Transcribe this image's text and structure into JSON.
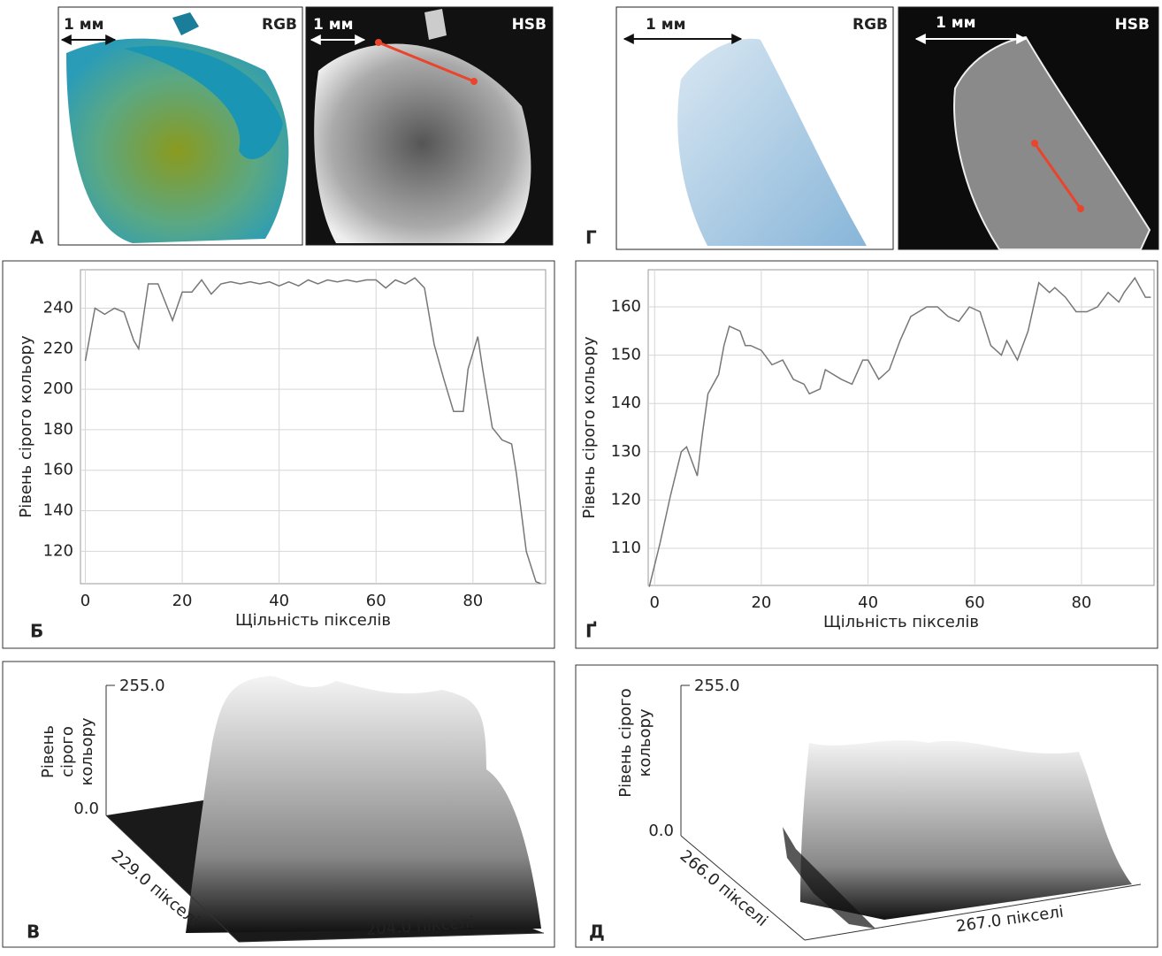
{
  "image_panels": [
    {
      "label": "А",
      "images": [
        {
          "scale": "1 мм",
          "mode": "RGB"
        },
        {
          "scale": "1 мм",
          "mode": "HSB"
        }
      ]
    },
    {
      "label": "Г",
      "images": [
        {
          "scale": "1 мм",
          "mode": "RGB"
        },
        {
          "scale": "1 мм",
          "mode": "HSB"
        }
      ]
    }
  ],
  "chart_data": [
    {
      "type": "line",
      "panel_label": "Б",
      "x_label": "Щільність пікселів",
      "y_label": "Рівень сірого кольору",
      "color": "#777777",
      "grid": true,
      "x": [
        0,
        2,
        4,
        6,
        8,
        10,
        11,
        13,
        15,
        17,
        18,
        20,
        22,
        24,
        26,
        28,
        30,
        32,
        34,
        36,
        38,
        40,
        42,
        44,
        46,
        48,
        50,
        52,
        54,
        56,
        58,
        60,
        62,
        64,
        66,
        68,
        70,
        72,
        74,
        76,
        78,
        79,
        81,
        82,
        84,
        86,
        88,
        89,
        91,
        93,
        94
      ],
      "values": [
        214,
        240,
        237,
        240,
        238,
        224,
        220,
        252,
        252,
        240,
        234,
        248,
        248,
        254,
        247,
        252,
        253,
        252,
        253,
        252,
        253,
        251,
        253,
        251,
        254,
        252,
        254,
        253,
        254,
        253,
        254,
        254,
        250,
        254,
        252,
        255,
        250,
        222,
        205,
        189,
        189,
        210,
        226,
        210,
        181,
        175,
        173,
        158,
        120,
        105,
        104
      ],
      "xlim": [
        -1,
        95
      ],
      "ylim": [
        104,
        259
      ],
      "xticks": [
        0,
        20,
        40,
        60,
        80
      ],
      "yticks": [
        120,
        140,
        160,
        180,
        200,
        220,
        240
      ]
    },
    {
      "type": "line",
      "panel_label": "Ґ",
      "x_label": "Щільність пікселів",
      "y_label": "Рівень сірого кольору",
      "color": "#777777",
      "grid": true,
      "x": [
        -1,
        1,
        3,
        5,
        6,
        8,
        9,
        10,
        12,
        13,
        14,
        16,
        17,
        18,
        20,
        22,
        24,
        26,
        28,
        29,
        31,
        32,
        35,
        37,
        39,
        40,
        42,
        44,
        46,
        48,
        51,
        53,
        55,
        57,
        59,
        61,
        63,
        65,
        66,
        68,
        70,
        72,
        74,
        75,
        77,
        79,
        81,
        83,
        85,
        87,
        88,
        90,
        92,
        93
      ],
      "values": [
        102,
        111,
        121,
        130,
        131,
        125,
        134,
        142,
        146,
        152,
        156,
        155,
        152,
        152,
        151,
        148,
        149,
        145,
        144,
        142,
        143,
        147,
        145,
        144,
        149,
        149,
        145,
        147,
        153,
        158,
        160,
        160,
        158,
        157,
        160,
        159,
        152,
        150,
        153,
        149,
        155,
        165,
        163,
        164,
        162,
        159,
        159,
        160,
        163,
        161,
        163,
        166,
        162,
        162
      ],
      "xlim": [
        -1.2,
        93.6
      ],
      "ylim": [
        102.3,
        167.7
      ],
      "xticks": [
        0,
        20,
        40,
        60,
        80
      ],
      "yticks": [
        110,
        120,
        130,
        140,
        150,
        160
      ]
    }
  ],
  "surface_panels": [
    {
      "label": "В",
      "z_label": [
        "Рівень",
        "сірого",
        "кольору"
      ],
      "z_max": "255.0",
      "z_min": "0.0",
      "depth": "229.0 пікселі",
      "width": "204.0 пікселі"
    },
    {
      "label": "Д",
      "z_label": [
        "Рівень сірого",
        "кольору"
      ],
      "z_max": "255.0",
      "z_min": "0.0",
      "depth": "266.0 пікселі",
      "width": "267.0 пікселі"
    }
  ]
}
